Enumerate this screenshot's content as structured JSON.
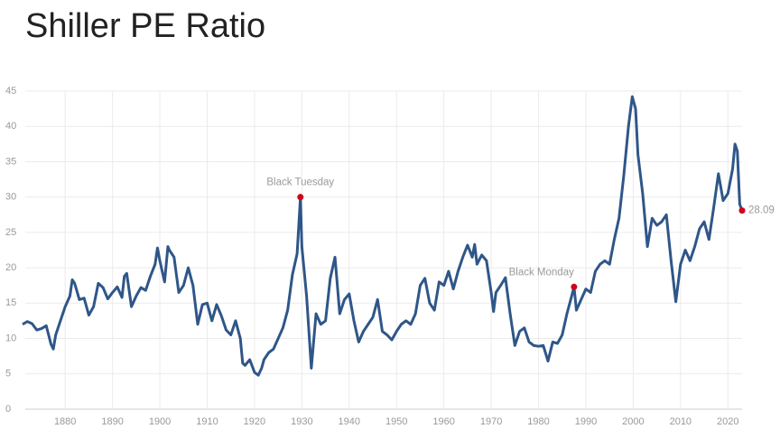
{
  "chart_data": {
    "type": "line",
    "title": "Shiller PE Ratio",
    "x": [
      1871,
      1872,
      1873,
      1874,
      1875,
      1876,
      1877,
      1877.5,
      1878,
      1879,
      1880,
      1881,
      1881.5,
      1882,
      1883,
      1884,
      1885,
      1886,
      1887,
      1888,
      1889,
      1890,
      1891,
      1892,
      1892.5,
      1893,
      1894,
      1895,
      1896,
      1897,
      1898,
      1899,
      1899.5,
      1900,
      1901,
      1901.7,
      1902,
      1903,
      1904,
      1905,
      1906,
      1907,
      1908,
      1909,
      1910,
      1911,
      1912,
      1913,
      1914,
      1915,
      1916,
      1917,
      1917.5,
      1918,
      1919,
      1920,
      1920.8,
      1921.5,
      1922,
      1923,
      1924,
      1925,
      1926,
      1927,
      1928,
      1929,
      1929.7,
      1930,
      1931,
      1932,
      1933,
      1934,
      1935,
      1936,
      1937,
      1938,
      1939,
      1940,
      1941,
      1942,
      1943,
      1944,
      1945,
      1946,
      1947,
      1948,
      1949,
      1950,
      1951,
      1952,
      1953,
      1954,
      1955,
      1956,
      1957,
      1958,
      1959,
      1960,
      1961,
      1962,
      1963,
      1964,
      1965,
      1966,
      1966.5,
      1967,
      1968,
      1969,
      1970,
      1970.5,
      1971,
      1972,
      1973,
      1974,
      1975,
      1976,
      1977,
      1978,
      1979,
      1980,
      1981,
      1982,
      1983,
      1984,
      1985,
      1986,
      1987,
      1987.5,
      1988,
      1989,
      1990,
      1991,
      1992,
      1993,
      1994,
      1995,
      1996,
      1997,
      1998,
      1999,
      1999.8,
      2000.5,
      2001,
      2002,
      2003,
      2004,
      2005,
      2006,
      2007,
      2008,
      2009,
      2010,
      2011,
      2012,
      2013,
      2014,
      2015,
      2016,
      2017,
      2018,
      2019,
      2020,
      2021,
      2021.5,
      2022,
      2022.5,
      2023
    ],
    "series": [
      {
        "color": "#2f5688",
        "values": [
          12.0,
          12.4,
          12.1,
          11.2,
          11.4,
          11.8,
          9.2,
          8.5,
          10.5,
          12.5,
          14.5,
          16.0,
          18.3,
          17.8,
          15.5,
          15.7,
          13.3,
          14.5,
          17.8,
          17.2,
          15.6,
          16.5,
          17.3,
          15.8,
          18.8,
          19.2,
          14.5,
          16.0,
          17.2,
          16.8,
          18.8,
          20.5,
          22.8,
          21.0,
          18.0,
          23.0,
          22.5,
          21.5,
          16.5,
          17.5,
          20.0,
          17.5,
          12.0,
          14.8,
          15.0,
          12.5,
          14.8,
          13.2,
          11.2,
          10.5,
          12.5,
          10.0,
          6.5,
          6.2,
          7.0,
          5.2,
          4.8,
          5.8,
          7.0,
          8.0,
          8.5,
          10.0,
          11.5,
          14.0,
          19.0,
          22.0,
          30.0,
          23.0,
          16.0,
          5.8,
          13.5,
          12.0,
          12.5,
          18.5,
          21.5,
          13.5,
          15.5,
          16.3,
          12.5,
          9.5,
          11.0,
          12.0,
          13.0,
          15.5,
          11.0,
          10.5,
          9.8,
          11.0,
          12.0,
          12.5,
          12.0,
          13.5,
          17.5,
          18.5,
          15.0,
          14.0,
          18.0,
          17.5,
          19.5,
          17.0,
          19.5,
          21.5,
          23.2,
          21.5,
          23.3,
          20.5,
          21.8,
          21.0,
          16.5,
          13.8,
          16.5,
          17.5,
          18.6,
          13.5,
          9.0,
          11.0,
          11.5,
          9.5,
          9.0,
          8.9,
          9.0,
          6.8,
          9.5,
          9.3,
          10.5,
          13.5,
          16.0,
          17.3,
          14.0,
          15.5,
          17.0,
          16.5,
          19.5,
          20.5,
          21.0,
          20.5,
          24.0,
          27.0,
          33.0,
          40.0,
          44.2,
          42.5,
          36.0,
          30.5,
          23.0,
          27.0,
          26.0,
          26.5,
          27.5,
          21.0,
          15.2,
          20.5,
          22.5,
          21.0,
          23.0,
          25.5,
          26.5,
          24.0,
          28.5,
          33.3,
          29.5,
          30.5,
          34.0,
          37.5,
          36.5,
          29.0,
          28.09
        ]
      }
    ],
    "annotations": [
      {
        "x": 1929.7,
        "y": 30.0,
        "label": "Black Tuesday"
      },
      {
        "x": 1987.5,
        "y": 17.3,
        "label": "Black Monday"
      }
    ],
    "xlim": [
      1871,
      2023
    ],
    "ylim": [
      0,
      45
    ],
    "xticks": [
      1880,
      1890,
      1900,
      1910,
      1920,
      1930,
      1940,
      1950,
      1960,
      1970,
      1980,
      1990,
      2000,
      2010,
      2020
    ],
    "yticks": [
      0,
      5,
      10,
      15,
      20,
      25,
      30,
      35,
      40,
      45
    ],
    "grid": true
  }
}
